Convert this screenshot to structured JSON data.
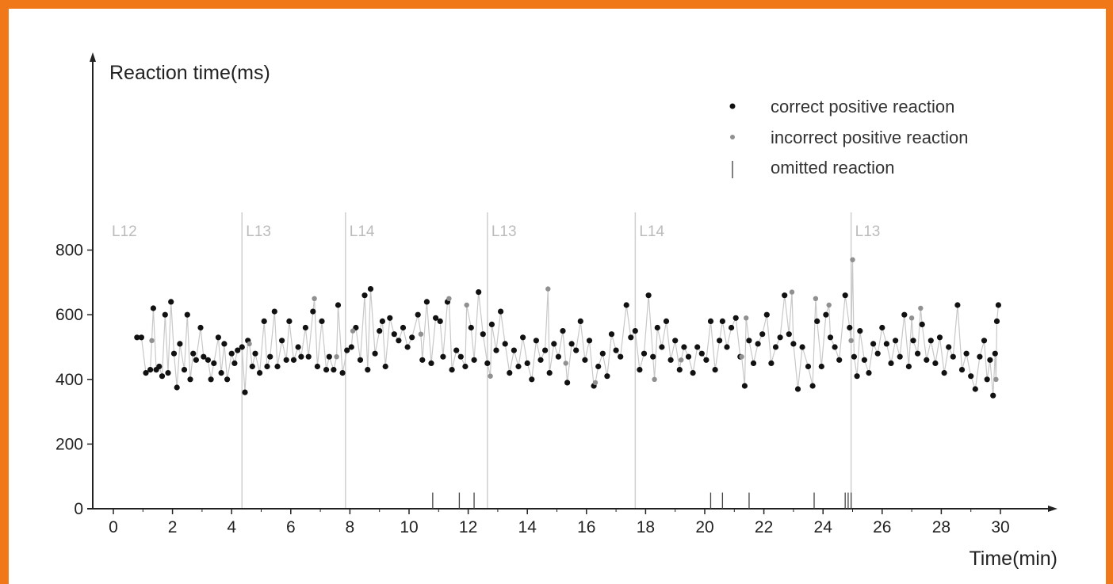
{
  "colors": {
    "frame": "#f07818",
    "correct": "#111111",
    "incorrect": "#909090",
    "line": "#c8c8c8",
    "level_line": "#cfcfcf",
    "level_text": "#bbbbbb"
  },
  "chart_data": {
    "type": "scatter",
    "ylabel": "Reaction time(ms)",
    "xlabel": "Time(min)",
    "xlim": [
      -0.8,
      32.5
    ],
    "ylim": [
      0,
      1010
    ],
    "x_ticks": [
      0,
      2,
      4,
      6,
      8,
      10,
      12,
      14,
      16,
      18,
      20,
      22,
      24,
      26,
      28,
      30
    ],
    "x_tick_labels": [
      "0",
      "2",
      "4",
      "6",
      "8",
      "10",
      "12",
      "14",
      "16",
      "18",
      "20",
      "22",
      "24",
      "26",
      "28",
      "30"
    ],
    "y_ticks": [
      0,
      200,
      400,
      600,
      800
    ],
    "y_tick_labels": [
      "0",
      "200",
      "400",
      "600",
      "800"
    ],
    "legend": {
      "position": "top-right",
      "items": [
        {
          "label": "correct positive reaction",
          "marker": "dot-dark"
        },
        {
          "label": "incorrect positive reaction",
          "marker": "dot-grey"
        },
        {
          "label": "omitted reaction",
          "marker": "bar"
        }
      ]
    },
    "levels": [
      {
        "label": "L12",
        "start": 0.0,
        "line": false
      },
      {
        "label": "L13",
        "start": 4.35,
        "line": true
      },
      {
        "label": "L14",
        "start": 7.85,
        "line": true
      },
      {
        "label": "L13",
        "start": 12.65,
        "line": true
      },
      {
        "label": "L14",
        "start": 17.65,
        "line": true
      },
      {
        "label": "L13",
        "start": 24.95,
        "line": true
      }
    ],
    "omitted_reactions": [
      10.8,
      11.7,
      12.2,
      20.2,
      20.6,
      21.5,
      23.7,
      24.75,
      24.85,
      24.95
    ],
    "omitted_height": 50,
    "series": [
      {
        "type": "correct",
        "points": [
          [
            0.8,
            530
          ],
          [
            0.95,
            530
          ],
          [
            1.1,
            420
          ],
          [
            1.25,
            430
          ],
          [
            1.35,
            620
          ],
          [
            1.45,
            430
          ],
          [
            1.55,
            440
          ],
          [
            1.65,
            410
          ],
          [
            1.75,
            600
          ],
          [
            1.85,
            420
          ],
          [
            1.95,
            640
          ],
          [
            2.05,
            480
          ],
          [
            2.15,
            375
          ],
          [
            2.25,
            510
          ],
          [
            2.4,
            430
          ],
          [
            2.5,
            600
          ],
          [
            2.6,
            400
          ],
          [
            2.7,
            480
          ],
          [
            2.8,
            460
          ],
          [
            2.95,
            560
          ],
          [
            3.05,
            470
          ],
          [
            3.2,
            460
          ],
          [
            3.3,
            400
          ],
          [
            3.4,
            450
          ],
          [
            3.55,
            530
          ],
          [
            3.65,
            420
          ],
          [
            3.75,
            510
          ],
          [
            3.85,
            400
          ],
          [
            4.0,
            480
          ],
          [
            4.1,
            450
          ],
          [
            4.2,
            490
          ],
          [
            4.35,
            500
          ],
          [
            4.45,
            360
          ],
          [
            4.55,
            520
          ],
          [
            4.7,
            440
          ],
          [
            4.8,
            480
          ],
          [
            4.95,
            420
          ],
          [
            5.1,
            580
          ],
          [
            5.2,
            440
          ],
          [
            5.3,
            470
          ],
          [
            5.45,
            610
          ],
          [
            5.55,
            440
          ],
          [
            5.7,
            520
          ],
          [
            5.85,
            460
          ],
          [
            5.95,
            580
          ],
          [
            6.1,
            460
          ],
          [
            6.25,
            500
          ],
          [
            6.35,
            470
          ],
          [
            6.5,
            560
          ],
          [
            6.6,
            470
          ],
          [
            6.75,
            610
          ],
          [
            6.9,
            440
          ],
          [
            7.05,
            580
          ],
          [
            7.2,
            430
          ],
          [
            7.3,
            470
          ],
          [
            7.45,
            430
          ],
          [
            7.6,
            630
          ],
          [
            7.75,
            420
          ],
          [
            7.9,
            490
          ],
          [
            8.05,
            500
          ],
          [
            8.2,
            560
          ],
          [
            8.35,
            460
          ],
          [
            8.5,
            660
          ],
          [
            8.6,
            430
          ],
          [
            8.7,
            680
          ],
          [
            8.85,
            480
          ],
          [
            9.0,
            550
          ],
          [
            9.1,
            580
          ],
          [
            9.2,
            440
          ],
          [
            9.35,
            590
          ],
          [
            9.5,
            540
          ],
          [
            9.65,
            520
          ],
          [
            9.8,
            560
          ],
          [
            9.95,
            500
          ],
          [
            10.1,
            530
          ],
          [
            10.3,
            600
          ],
          [
            10.45,
            460
          ],
          [
            10.6,
            640
          ],
          [
            10.75,
            450
          ],
          [
            10.9,
            590
          ],
          [
            11.05,
            580
          ],
          [
            11.15,
            470
          ],
          [
            11.3,
            640
          ],
          [
            11.45,
            430
          ],
          [
            11.6,
            490
          ],
          [
            11.75,
            470
          ],
          [
            11.9,
            440
          ],
          [
            12.1,
            560
          ],
          [
            12.2,
            460
          ],
          [
            12.35,
            670
          ],
          [
            12.5,
            540
          ],
          [
            12.65,
            450
          ],
          [
            12.8,
            570
          ],
          [
            12.95,
            490
          ],
          [
            13.1,
            610
          ],
          [
            13.25,
            510
          ],
          [
            13.4,
            420
          ],
          [
            13.55,
            490
          ],
          [
            13.7,
            440
          ],
          [
            13.85,
            530
          ],
          [
            14.0,
            450
          ],
          [
            14.15,
            400
          ],
          [
            14.3,
            520
          ],
          [
            14.45,
            460
          ],
          [
            14.6,
            490
          ],
          [
            14.75,
            420
          ],
          [
            14.9,
            510
          ],
          [
            15.05,
            470
          ],
          [
            15.2,
            550
          ],
          [
            15.35,
            390
          ],
          [
            15.5,
            510
          ],
          [
            15.65,
            490
          ],
          [
            15.8,
            580
          ],
          [
            15.95,
            460
          ],
          [
            16.1,
            520
          ],
          [
            16.25,
            380
          ],
          [
            16.4,
            440
          ],
          [
            16.55,
            480
          ],
          [
            16.7,
            410
          ],
          [
            16.85,
            540
          ],
          [
            17.0,
            490
          ],
          [
            17.15,
            470
          ],
          [
            17.35,
            630
          ],
          [
            17.5,
            530
          ],
          [
            17.65,
            550
          ],
          [
            17.8,
            430
          ],
          [
            17.95,
            480
          ],
          [
            18.1,
            660
          ],
          [
            18.25,
            470
          ],
          [
            18.4,
            560
          ],
          [
            18.55,
            500
          ],
          [
            18.7,
            580
          ],
          [
            18.85,
            460
          ],
          [
            19.0,
            520
          ],
          [
            19.15,
            430
          ],
          [
            19.3,
            500
          ],
          [
            19.45,
            470
          ],
          [
            19.6,
            420
          ],
          [
            19.75,
            500
          ],
          [
            19.9,
            480
          ],
          [
            20.05,
            460
          ],
          [
            20.2,
            580
          ],
          [
            20.35,
            430
          ],
          [
            20.5,
            520
          ],
          [
            20.6,
            580
          ],
          [
            20.75,
            500
          ],
          [
            20.9,
            560
          ],
          [
            21.05,
            590
          ],
          [
            21.2,
            470
          ],
          [
            21.35,
            380
          ],
          [
            21.5,
            520
          ],
          [
            21.65,
            450
          ],
          [
            21.8,
            510
          ],
          [
            21.95,
            540
          ],
          [
            22.1,
            600
          ],
          [
            22.25,
            450
          ],
          [
            22.4,
            500
          ],
          [
            22.55,
            530
          ],
          [
            22.7,
            660
          ],
          [
            22.85,
            540
          ],
          [
            23.0,
            510
          ],
          [
            23.15,
            370
          ],
          [
            23.3,
            500
          ],
          [
            23.5,
            440
          ],
          [
            23.65,
            380
          ],
          [
            23.8,
            580
          ],
          [
            23.95,
            440
          ],
          [
            24.1,
            600
          ],
          [
            24.25,
            530
          ],
          [
            24.4,
            500
          ],
          [
            24.55,
            460
          ],
          [
            24.75,
            660
          ],
          [
            24.9,
            560
          ],
          [
            25.05,
            470
          ],
          [
            25.15,
            410
          ],
          [
            25.25,
            550
          ],
          [
            25.4,
            460
          ],
          [
            25.55,
            420
          ],
          [
            25.7,
            510
          ],
          [
            25.85,
            480
          ],
          [
            26.0,
            560
          ],
          [
            26.15,
            510
          ],
          [
            26.3,
            450
          ],
          [
            26.45,
            520
          ],
          [
            26.6,
            470
          ],
          [
            26.75,
            600
          ],
          [
            26.9,
            440
          ],
          [
            27.05,
            520
          ],
          [
            27.2,
            480
          ],
          [
            27.35,
            570
          ],
          [
            27.5,
            460
          ],
          [
            27.65,
            520
          ],
          [
            27.8,
            450
          ],
          [
            27.95,
            530
          ],
          [
            28.1,
            420
          ],
          [
            28.25,
            500
          ],
          [
            28.4,
            470
          ],
          [
            28.55,
            630
          ],
          [
            28.7,
            430
          ],
          [
            28.85,
            480
          ],
          [
            29.0,
            410
          ],
          [
            29.15,
            370
          ],
          [
            29.3,
            470
          ],
          [
            29.45,
            520
          ],
          [
            29.55,
            400
          ],
          [
            29.65,
            460
          ],
          [
            29.75,
            350
          ],
          [
            29.82,
            480
          ],
          [
            29.88,
            580
          ],
          [
            29.93,
            630
          ]
        ]
      },
      {
        "type": "incorrect",
        "points": [
          [
            1.3,
            520
          ],
          [
            4.6,
            510
          ],
          [
            6.8,
            650
          ],
          [
            7.55,
            470
          ],
          [
            8.1,
            550
          ],
          [
            10.4,
            540
          ],
          [
            11.35,
            650
          ],
          [
            11.95,
            630
          ],
          [
            12.75,
            410
          ],
          [
            14.7,
            680
          ],
          [
            15.3,
            450
          ],
          [
            16.3,
            390
          ],
          [
            18.3,
            400
          ],
          [
            19.2,
            460
          ],
          [
            21.25,
            470
          ],
          [
            21.4,
            590
          ],
          [
            22.95,
            670
          ],
          [
            23.75,
            650
          ],
          [
            24.2,
            630
          ],
          [
            25.0,
            770
          ],
          [
            24.95,
            520
          ],
          [
            27.0,
            590
          ],
          [
            27.3,
            620
          ],
          [
            29.85,
            400
          ]
        ]
      }
    ]
  }
}
